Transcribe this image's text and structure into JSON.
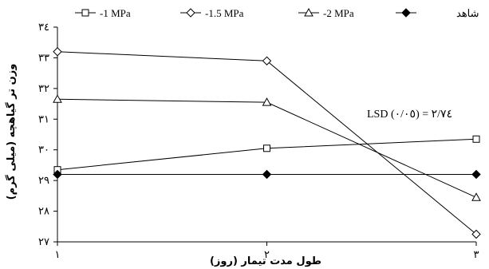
{
  "chart_data": {
    "type": "line",
    "x": [
      1,
      2,
      3
    ],
    "x_tick_labels": [
      "١",
      "٢",
      "٣"
    ],
    "xlim": [
      1,
      3
    ],
    "ylim": [
      27,
      34
    ],
    "y_ticks": [
      27,
      28,
      29,
      30,
      31,
      32,
      33,
      34
    ],
    "y_tick_labels": [
      "٢٧",
      "٢٨",
      "٢٩",
      "٣٠",
      "٣١",
      "٣٢",
      "٣٣",
      "٣٤"
    ],
    "xlabel": "طول مدت تیمار (روز)",
    "ylabel": "وزن تر گیاهچه (میلی گرم)",
    "annotation": "LSD (٠/٠٥) = ٢/٧٤",
    "grid": false,
    "legend_position": "top",
    "series": [
      {
        "name": "-1 MPa",
        "marker": "square",
        "values": [
          29.35,
          30.05,
          30.35
        ]
      },
      {
        "name": "-1.5 MPa",
        "marker": "diamond",
        "values": [
          33.2,
          32.9,
          27.25
        ]
      },
      {
        "name": "-2 MPa",
        "marker": "triangle",
        "values": [
          31.65,
          31.55,
          28.45
        ]
      },
      {
        "name": "شاهد",
        "marker": "filled-diamond",
        "values": [
          29.2,
          29.2,
          29.2
        ]
      }
    ]
  }
}
